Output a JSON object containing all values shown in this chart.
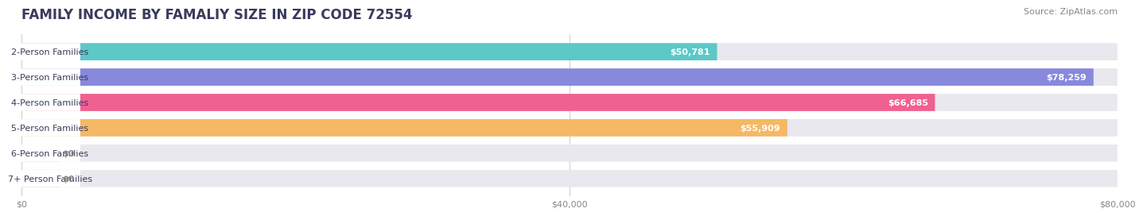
{
  "title": "FAMILY INCOME BY FAMALIY SIZE IN ZIP CODE 72554",
  "source": "Source: ZipAtlas.com",
  "categories": [
    "2-Person Families",
    "3-Person Families",
    "4-Person Families",
    "5-Person Families",
    "6-Person Families",
    "7+ Person Families"
  ],
  "values": [
    50781,
    78259,
    66685,
    55909,
    0,
    0
  ],
  "bar_colors": [
    "#5cc8c8",
    "#8888dd",
    "#f06090",
    "#f5b865",
    "#f5a0a8",
    "#a0b8e8"
  ],
  "bar_bg_color": "#e8e8ee",
  "value_labels": [
    "$50,781",
    "$78,259",
    "$66,685",
    "$55,909",
    "$0",
    "$0"
  ],
  "xlim": [
    0,
    80000
  ],
  "xtick_labels": [
    "$0",
    "$40,000",
    "$80,000"
  ],
  "xtick_values": [
    0,
    40000,
    80000
  ],
  "title_color": "#3a3a5c",
  "source_color": "#888888",
  "label_color": "#ffffff",
  "label_color_zero": "#888888",
  "background_color": "#ffffff",
  "title_fontsize": 12,
  "source_fontsize": 8,
  "bar_label_fontsize": 8,
  "category_fontsize": 8,
  "xtick_fontsize": 8
}
